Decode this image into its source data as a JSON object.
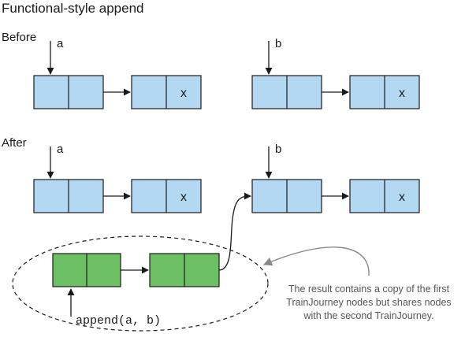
{
  "title": "Functional-style append",
  "sections": {
    "before": "Before",
    "after": "After"
  },
  "pointers": {
    "a": "a",
    "b": "b"
  },
  "nil_marker": "x",
  "code_label": "append(a, b)",
  "annotation": [
    "The result contains a copy of the first",
    "TrainJourney nodes but shares nodes",
    "with the second TrainJourney."
  ],
  "colors": {
    "original_node": "#b3d9f2",
    "copied_node": "#6cc063",
    "stroke": "#1a1a1a",
    "annotation_arrow": "#888888"
  }
}
